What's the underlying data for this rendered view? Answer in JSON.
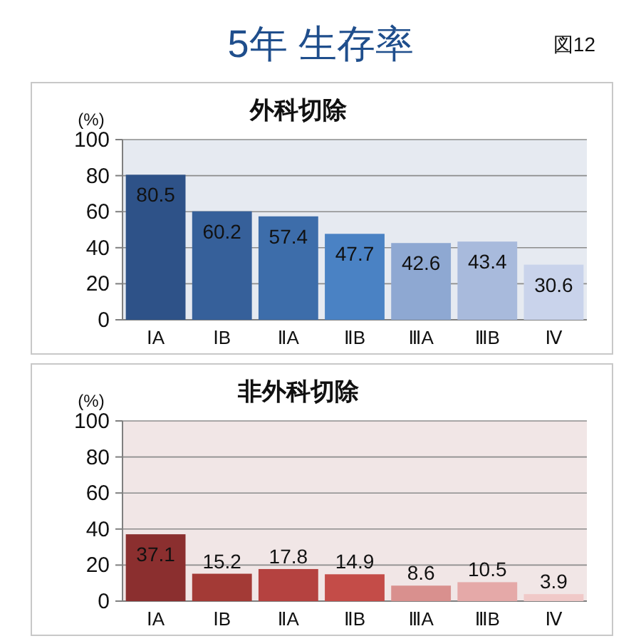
{
  "chart_data": [
    {
      "type": "other",
      "title": "5年 生存率",
      "annotations": [
        "図12"
      ]
    },
    {
      "type": "bar",
      "title": "外科切除",
      "ylabel": "(%)",
      "categories": [
        "ⅠA",
        "ⅠB",
        "ⅡA",
        "ⅡB",
        "ⅢA",
        "ⅢB",
        "Ⅳ"
      ],
      "values": [
        80.5,
        60.2,
        57.4,
        47.7,
        42.6,
        43.4,
        30.6
      ],
      "colors": [
        "#2e5288",
        "#36609a",
        "#3d6daa",
        "#4a82c4",
        "#8ea8d2",
        "#a8badc",
        "#c9d3eb"
      ],
      "ylim": [
        0,
        100
      ],
      "yticks": [
        0,
        20,
        40,
        60,
        80,
        100
      ],
      "grid": "y",
      "data_labels": true
    },
    {
      "type": "bar",
      "title": "非外科切除",
      "ylabel": "(%)",
      "categories": [
        "ⅠA",
        "ⅠB",
        "ⅡA",
        "ⅡB",
        "ⅢA",
        "ⅢB",
        "Ⅳ"
      ],
      "values": [
        37.1,
        15.2,
        17.8,
        14.9,
        8.6,
        10.5,
        3.9
      ],
      "colors": [
        "#8b2f2f",
        "#a33a36",
        "#b54240",
        "#c44c48",
        "#d9908e",
        "#e5a9a8",
        "#f0c9c8"
      ],
      "ylim": [
        0,
        100
      ],
      "yticks": [
        0,
        20,
        40,
        60,
        80,
        100
      ],
      "grid": "y",
      "data_labels": true
    }
  ]
}
